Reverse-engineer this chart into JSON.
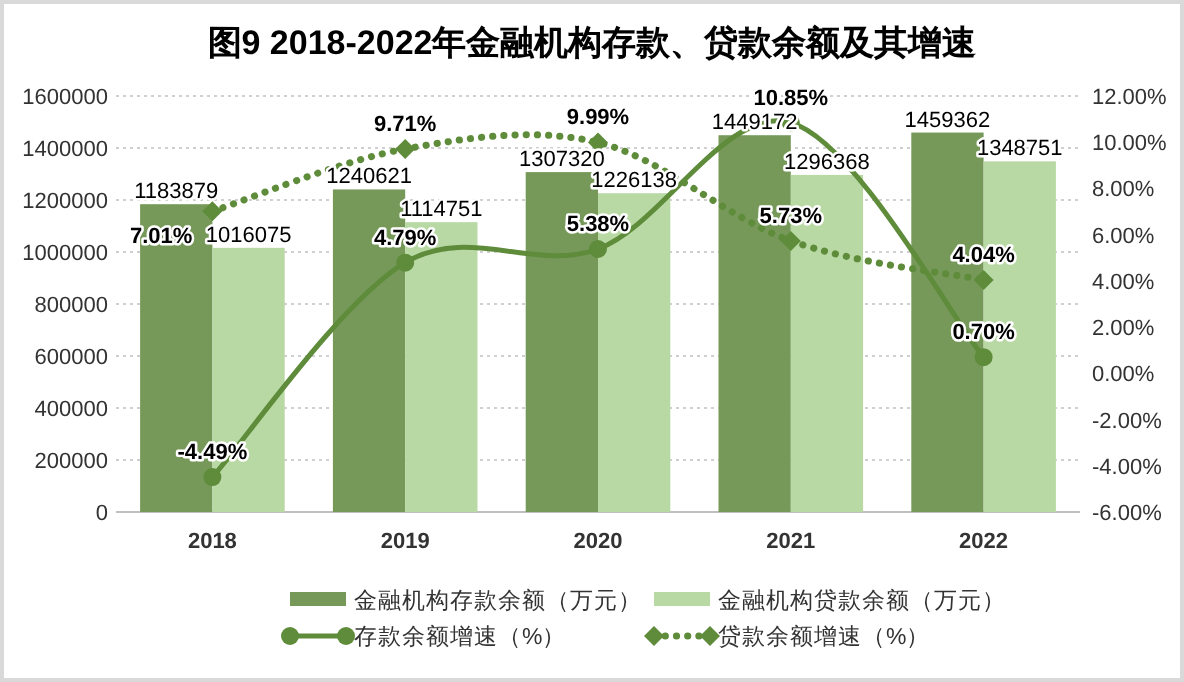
{
  "chart_data": {
    "type": "bar",
    "title": "图9  2018-2022年金融机构存款、贷款余额及其增速",
    "categories": [
      "2018",
      "2019",
      "2020",
      "2021",
      "2022"
    ],
    "series": [
      {
        "name": "金融机构存款余额（万元）",
        "color": "#76995a",
        "values": [
          1183879,
          1240621,
          1307320,
          1449172,
          1459362
        ]
      },
      {
        "name": "金融机构贷款余额（万元）",
        "color": "#b8d9a4",
        "values": [
          1016075,
          1114751,
          1226138,
          1296368,
          1348751
        ]
      },
      {
        "name": "存款余额增速（%）",
        "type": "line",
        "axis": "y2",
        "color": "#5e8c3a",
        "marker": "circle",
        "line_style": "solid",
        "values": [
          -4.49,
          4.79,
          5.38,
          10.85,
          0.7
        ],
        "value_labels": [
          "-4.49%",
          "4.79%",
          "5.38%",
          "10.85%",
          "0.70%"
        ]
      },
      {
        "name": "贷款余额增速（%）",
        "type": "line",
        "axis": "y2",
        "color": "#5e8c3a",
        "marker": "diamond",
        "line_style": "dotted",
        "values": [
          7.01,
          9.71,
          9.99,
          5.73,
          4.04
        ],
        "value_labels": [
          "7.01%",
          "9.71%",
          "9.99%",
          "5.73%",
          "4.04%"
        ]
      }
    ],
    "ylim": [
      0,
      1600000
    ],
    "yticks": [
      0,
      200000,
      400000,
      600000,
      800000,
      1000000,
      1200000,
      1400000,
      1600000
    ],
    "y2lim": [
      -6,
      12
    ],
    "y2ticks": [
      {
        "value": -6,
        "label": "-6.00%"
      },
      {
        "value": -4,
        "label": "-4.00%"
      },
      {
        "value": -2,
        "label": "-2.00%"
      },
      {
        "value": 0,
        "label": "0.00%"
      },
      {
        "value": 2,
        "label": "2.00%"
      },
      {
        "value": 4,
        "label": "4.00%"
      },
      {
        "value": 6,
        "label": "6.00%"
      },
      {
        "value": 8,
        "label": "8.00%"
      },
      {
        "value": 10,
        "label": "10.00%"
      },
      {
        "value": 12,
        "label": "12.00%"
      }
    ],
    "grid": "y",
    "legend": "bottom",
    "data_labels": true
  }
}
